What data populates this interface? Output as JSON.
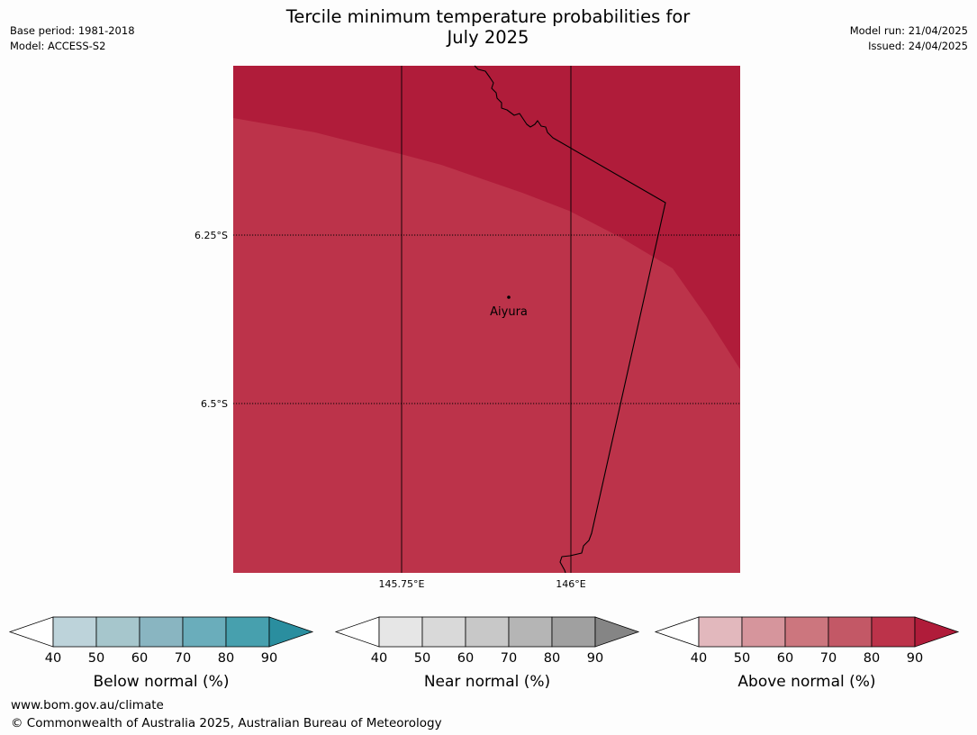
{
  "header": {
    "title_line1": "Tercile minimum temperature probabilities for",
    "title_line2": "July 2025",
    "base_period": "Base period: 1981-2018",
    "model": "Model: ACCESS-S2",
    "model_run": "Model run: 21/04/2025",
    "issued": "Issued: 24/04/2025"
  },
  "map": {
    "lat_labels": [
      "6.25°S",
      "6.5°S"
    ],
    "lon_labels": [
      "145.75°E",
      "146°E"
    ],
    "place": {
      "name": "Aiyura"
    },
    "colors": {
      "above_90": "#b01c3a",
      "above_80": "#bc334a",
      "border": "#000000"
    }
  },
  "colorbars": [
    {
      "title": "Below normal (%)",
      "ticks": [
        "40",
        "50",
        "60",
        "70",
        "80",
        "90"
      ],
      "colors": [
        "#ffffff",
        "#bdd3da",
        "#a6c6cc",
        "#89b5c1",
        "#6aadbb",
        "#47a0ae",
        "#2a8e9f"
      ]
    },
    {
      "title": "Near normal (%)",
      "ticks": [
        "40",
        "50",
        "60",
        "70",
        "80",
        "90"
      ],
      "colors": [
        "#ffffff",
        "#e6e6e6",
        "#d9d9d9",
        "#c8c8c8",
        "#b5b5b5",
        "#a0a0a0",
        "#858585"
      ]
    },
    {
      "title": "Above normal (%)",
      "ticks": [
        "40",
        "50",
        "60",
        "70",
        "80",
        "90"
      ],
      "colors": [
        "#ffffff",
        "#e2b8bd",
        "#d6959c",
        "#cc767e",
        "#c35866",
        "#bc334a",
        "#b01c3a"
      ]
    }
  ],
  "footer": {
    "url": "www.bom.gov.au/climate",
    "copyright": "© Commonwealth of Australia 2025, Australian Bureau of Meteorology"
  }
}
